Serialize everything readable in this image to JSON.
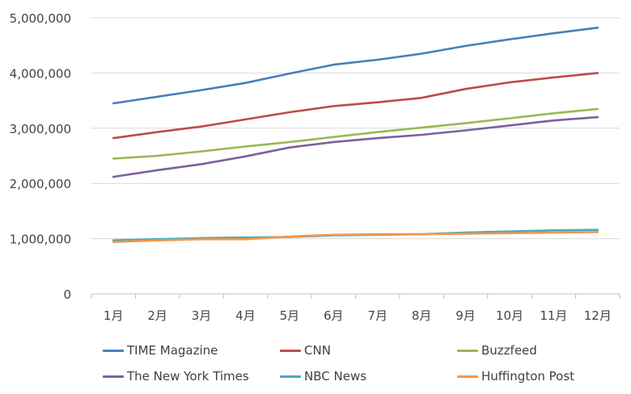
{
  "chart_data": {
    "type": "line",
    "title": "",
    "xlabel": "",
    "ylabel": "",
    "categories": [
      "1月",
      "2月",
      "3月",
      "4月",
      "5月",
      "6月",
      "7月",
      "8月",
      "9月",
      "10月",
      "11月",
      "12月"
    ],
    "ylim": [
      0,
      5000000
    ],
    "yticks": [
      0,
      1000000,
      2000000,
      3000000,
      4000000,
      5000000
    ],
    "ytick_labels": [
      "0",
      "1,000,000",
      "2,000,000",
      "3,000,000",
      "4,000,000",
      "5,000,000"
    ],
    "grid": "horizontal",
    "legend_position": "bottom",
    "series": [
      {
        "name": "TIME Magazine",
        "color": "#4a7ebb",
        "values": [
          3450000,
          3570000,
          3690000,
          3820000,
          3990000,
          4150000,
          4240000,
          4350000,
          4490000,
          4610000,
          4720000,
          4820000
        ]
      },
      {
        "name": "CNN",
        "color": "#be4b48",
        "values": [
          2820000,
          2930000,
          3030000,
          3160000,
          3290000,
          3400000,
          3470000,
          3550000,
          3710000,
          3830000,
          3920000,
          4000000
        ]
      },
      {
        "name": "Buzzfeed",
        "color": "#98b954",
        "values": [
          2450000,
          2500000,
          2580000,
          2670000,
          2750000,
          2840000,
          2930000,
          3010000,
          3090000,
          3180000,
          3270000,
          3350000
        ]
      },
      {
        "name": "The New York Times",
        "color": "#7d60a0",
        "values": [
          2120000,
          2240000,
          2350000,
          2490000,
          2650000,
          2750000,
          2820000,
          2880000,
          2960000,
          3050000,
          3140000,
          3200000
        ]
      },
      {
        "name": "NBC News",
        "color": "#46aac4",
        "values": [
          970000,
          990000,
          1010000,
          1020000,
          1030000,
          1060000,
          1070000,
          1080000,
          1110000,
          1130000,
          1150000,
          1160000
        ]
      },
      {
        "name": "Huffington Post",
        "color": "#f79646",
        "values": [
          940000,
          970000,
          990000,
          990000,
          1040000,
          1070000,
          1080000,
          1080000,
          1090000,
          1100000,
          1110000,
          1120000
        ]
      }
    ]
  }
}
